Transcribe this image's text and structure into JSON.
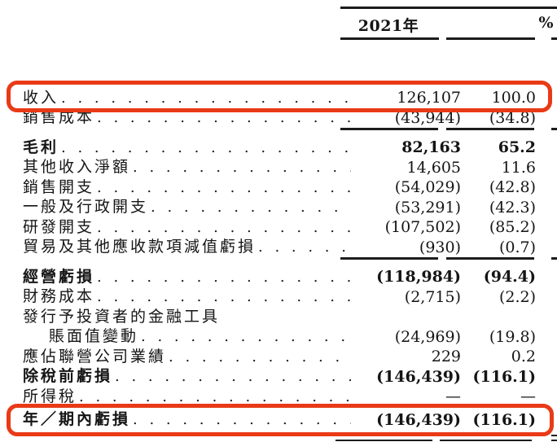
{
  "colors": {
    "highlight_box": "#e93a17",
    "text": "#151515",
    "rule": "#1c1c1c"
  },
  "table": {
    "columns": [
      "2021年",
      "%"
    ],
    "rows": [
      {
        "label": "收入",
        "value": "126,107",
        "percent": "100.0",
        "bold": false,
        "dots": true,
        "highlighted": true
      },
      {
        "label": "銷售成本",
        "value": "(43,944)",
        "percent": "(34.8)",
        "bold": false,
        "dots": true,
        "rule_after": true
      },
      {
        "label": "毛利",
        "value": "82,163",
        "percent": "65.2",
        "bold": true,
        "dots": true
      },
      {
        "label": "其他收入淨額",
        "value": "14,605",
        "percent": "11.6",
        "bold": false,
        "dots": true
      },
      {
        "label": "銷售開支",
        "value": "(54,029)",
        "percent": "(42.8)",
        "bold": false,
        "dots": true
      },
      {
        "label": "一般及行政開支",
        "value": "(53,291)",
        "percent": "(42.3)",
        "bold": false,
        "dots": true
      },
      {
        "label": "研發開支",
        "value": "(107,502)",
        "percent": "(85.2)",
        "bold": false,
        "dots": true
      },
      {
        "label": "貿易及其他應收款項減值虧損",
        "value": "(930)",
        "percent": "(0.7)",
        "bold": false,
        "dots": true,
        "rule_after": true
      },
      {
        "label": "經營虧損",
        "value": "(118,984)",
        "percent": "(94.4)",
        "bold": true,
        "dots": true
      },
      {
        "label": "財務成本",
        "value": "(2,715)",
        "percent": "(2.2)",
        "bold": false,
        "dots": true
      },
      {
        "label": "發行予投資者的金融工具",
        "value": "",
        "percent": "",
        "bold": false,
        "dots": false
      },
      {
        "label": "賬面值變動",
        "value": "(24,969)",
        "percent": "(19.8)",
        "bold": false,
        "dots": true,
        "indent": true
      },
      {
        "label": "應佔聯營公司業績",
        "value": "229",
        "percent": "0.2",
        "bold": false,
        "dots": true
      },
      {
        "label": "除稅前虧損",
        "value": "(146,439)",
        "percent": "(116.1)",
        "bold": true,
        "dots": true
      },
      {
        "label": "所得稅",
        "value": "—",
        "percent": "—",
        "bold": false,
        "dots": true
      },
      {
        "label": "年／期內虧損",
        "value": "(146,439)",
        "percent": "(116.1)",
        "bold": true,
        "dots": true,
        "highlighted": true,
        "final": true,
        "double_rule_after": true
      }
    ]
  }
}
